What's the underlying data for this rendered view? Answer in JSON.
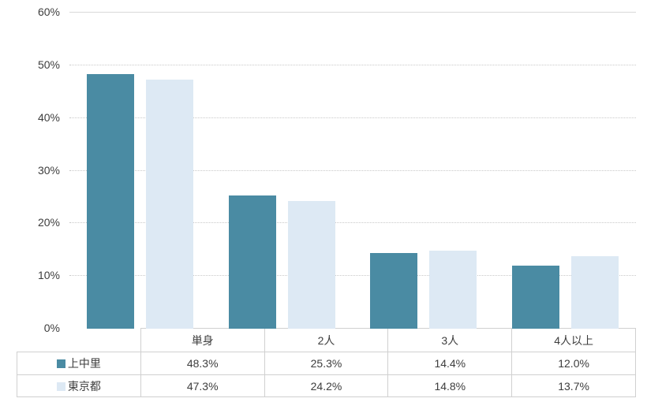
{
  "chart_data": {
    "type": "bar",
    "title": "",
    "categories": [
      "単身",
      "2人",
      "3人",
      "4人以上"
    ],
    "series": [
      {
        "name": "上中里",
        "color": "#4a8ba3",
        "values": [
          48.3,
          25.3,
          14.4,
          12.0
        ],
        "labels": [
          "48.3%",
          "25.3%",
          "14.4%",
          "12.0%"
        ]
      },
      {
        "name": "東京都",
        "color": "#dde9f4",
        "values": [
          47.3,
          24.2,
          14.8,
          13.7
        ],
        "labels": [
          "47.3%",
          "24.2%",
          "14.8%",
          "13.7%"
        ]
      }
    ],
    "y_ticks": [
      "0%",
      "10%",
      "20%",
      "30%",
      "40%",
      "50%",
      "60%"
    ],
    "y_tick_step": 10,
    "ylim": [
      0,
      60
    ],
    "xlabel": "",
    "ylabel": "",
    "grid": true,
    "legend_position": "table-left",
    "colors": {
      "series1": "#4a8ba3",
      "series2": "#dde9f4",
      "gridline": "#c9c9c9",
      "top_gridline": "#d9d9d9",
      "table_border": "#d0d0d0",
      "text": "#3d3d3d",
      "background": "#ffffff"
    }
  }
}
